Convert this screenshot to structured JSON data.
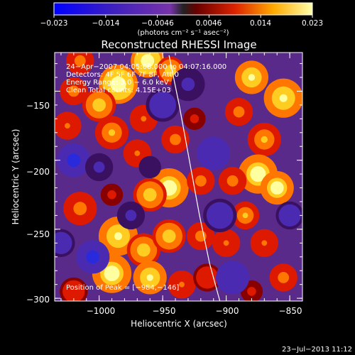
{
  "colorbar": {
    "tick_labels": [
      "−0.023",
      "−0.014",
      "−0.0046",
      "0.0046",
      "0.014",
      "0.023"
    ],
    "unit_label": "(photons cm⁻² s⁻¹ asec⁻²)",
    "range": [
      -0.023,
      0.023
    ]
  },
  "chart_data": {
    "type": "heatmap",
    "title": "Reconstructed RHESSI Image",
    "xlabel": "Heliocentric X (arcsec)",
    "ylabel": "Heliocentric Y (arcsec)",
    "xlim": [
      -1035,
      -840
    ],
    "ylim": [
      -302,
      -122
    ],
    "x_ticks": [
      -1000,
      -950,
      -900,
      -850
    ],
    "y_ticks": [
      -150,
      -200,
      -250,
      -300
    ],
    "x_tick_labels": [
      "−1000",
      "−950",
      "−900",
      "−850"
    ],
    "y_tick_labels": [
      "−150",
      "−200",
      "−250",
      "−300"
    ],
    "annotations": [
      "24−Apr−2007 04:05:08.000 to 04:07:16.000",
      "Detectors: 4F 5F 6F 7F 8F, Att 0",
      "Energy Range: 3.0 − 6.0 keV",
      "Clean     Total counts: 4.15E+03"
    ],
    "peak_label": "Position of Peak = [−984,−146]",
    "peak_position": [
      -984,
      -146
    ],
    "limb_curve": {
      "x": [
        -945,
        -937,
        -929,
        -921,
        -913,
        -905
      ],
      "y": [
        -124,
        -160,
        -200,
        -240,
        -275,
        -302
      ]
    },
    "blobs": [
      {
        "x": -962,
        "y": -128,
        "v": 0.023,
        "s": 6
      },
      {
        "x": -944,
        "y": -135,
        "v": 0.016,
        "s": 5
      },
      {
        "x": -1015,
        "y": -128,
        "v": 0.012,
        "s": 5
      },
      {
        "x": -985,
        "y": -145,
        "v": 0.023,
        "s": 7
      },
      {
        "x": -1000,
        "y": -160,
        "v": 0.016,
        "s": 6
      },
      {
        "x": -1020,
        "y": -150,
        "v": 0.012,
        "s": 5
      },
      {
        "x": -1025,
        "y": -175,
        "v": 0.01,
        "s": 5
      },
      {
        "x": -990,
        "y": -180,
        "v": 0.014,
        "s": 6
      },
      {
        "x": -965,
        "y": -170,
        "v": 0.01,
        "s": 5
      },
      {
        "x": -970,
        "y": -195,
        "v": 0.01,
        "s": 5
      },
      {
        "x": -940,
        "y": -185,
        "v": 0.012,
        "s": 5
      },
      {
        "x": -925,
        "y": -170,
        "v": 0.006,
        "s": 4
      },
      {
        "x": -945,
        "y": -220,
        "v": 0.022,
        "s": 7
      },
      {
        "x": -960,
        "y": -225,
        "v": 0.018,
        "s": 6
      },
      {
        "x": -920,
        "y": -215,
        "v": 0.012,
        "s": 5
      },
      {
        "x": -1015,
        "y": -235,
        "v": 0.012,
        "s": 6
      },
      {
        "x": -990,
        "y": -225,
        "v": 0.006,
        "s": 4
      },
      {
        "x": -985,
        "y": -255,
        "v": 0.02,
        "s": 7
      },
      {
        "x": -965,
        "y": -265,
        "v": 0.016,
        "s": 6
      },
      {
        "x": -945,
        "y": -255,
        "v": 0.016,
        "s": 6
      },
      {
        "x": -920,
        "y": -255,
        "v": 0.012,
        "s": 5
      },
      {
        "x": -990,
        "y": -282,
        "v": 0.022,
        "s": 7
      },
      {
        "x": -960,
        "y": -285,
        "v": 0.02,
        "s": 6
      },
      {
        "x": -1020,
        "y": -295,
        "v": 0.008,
        "s": 5
      },
      {
        "x": -935,
        "y": -290,
        "v": 0.01,
        "s": 5
      },
      {
        "x": -915,
        "y": -285,
        "v": 0.008,
        "s": 5
      },
      {
        "x": -880,
        "y": -140,
        "v": 0.02,
        "s": 6
      },
      {
        "x": -855,
        "y": -155,
        "v": 0.02,
        "s": 7
      },
      {
        "x": -890,
        "y": -165,
        "v": 0.012,
        "s": 5
      },
      {
        "x": -870,
        "y": -185,
        "v": 0.014,
        "s": 6
      },
      {
        "x": -875,
        "y": -210,
        "v": 0.022,
        "s": 7
      },
      {
        "x": -860,
        "y": -220,
        "v": 0.022,
        "s": 6
      },
      {
        "x": -895,
        "y": -215,
        "v": 0.012,
        "s": 5
      },
      {
        "x": -885,
        "y": -240,
        "v": 0.014,
        "s": 5
      },
      {
        "x": -900,
        "y": -260,
        "v": 0.01,
        "s": 5
      },
      {
        "x": -870,
        "y": -260,
        "v": 0.01,
        "s": 5
      },
      {
        "x": -855,
        "y": -285,
        "v": 0.012,
        "s": 5
      },
      {
        "x": -880,
        "y": -295,
        "v": 0.006,
        "s": 4
      },
      {
        "x": -930,
        "y": -145,
        "v": -0.004,
        "s": 6
      },
      {
        "x": -1020,
        "y": -200,
        "v": -0.01,
        "s": 6
      },
      {
        "x": -1005,
        "y": -270,
        "v": -0.01,
        "s": 6
      },
      {
        "x": -950,
        "y": -160,
        "v": -0.006,
        "s": 6
      },
      {
        "x": -910,
        "y": -195,
        "v": -0.008,
        "s": 6
      },
      {
        "x": -905,
        "y": -240,
        "v": -0.006,
        "s": 6
      },
      {
        "x": -895,
        "y": -285,
        "v": -0.008,
        "s": 6
      },
      {
        "x": -850,
        "y": -240,
        "v": -0.006,
        "s": 5
      },
      {
        "x": -975,
        "y": -240,
        "v": -0.004,
        "s": 5
      },
      {
        "x": -1000,
        "y": -205,
        "v": -0.004,
        "s": 5
      },
      {
        "x": -960,
        "y": -205,
        "v": -0.003,
        "s": 4
      },
      {
        "x": -1030,
        "y": -260,
        "v": -0.006,
        "s": 5
      }
    ]
  },
  "footer": {
    "timestamp": "23−Jul−2013 11:12"
  }
}
